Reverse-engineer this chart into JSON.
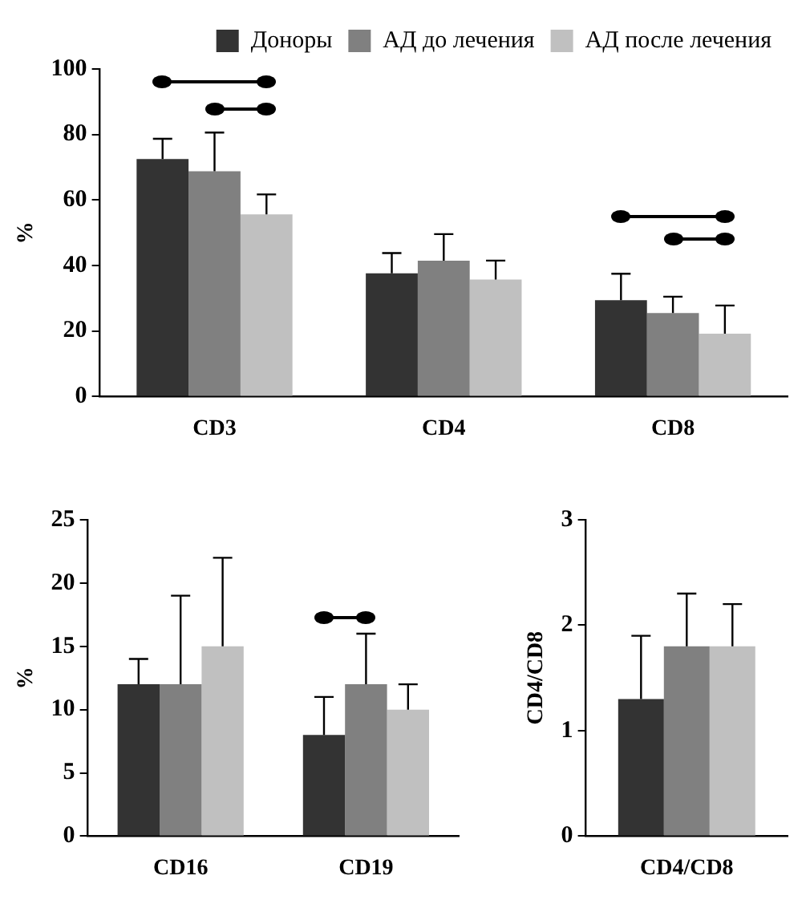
{
  "chart_data": [
    {
      "type": "bar",
      "categories": [
        "CD3",
        "CD4",
        "CD8"
      ],
      "ylabel": "%",
      "ylim": [
        0,
        100
      ],
      "yticks": [
        0,
        20,
        40,
        60,
        80,
        100
      ],
      "grid": false,
      "legend": "top right",
      "series": [
        {
          "name": "Доноры",
          "color": "#333333",
          "values": [
            72.5,
            37.6,
            29.4
          ],
          "errors": [
            [
              72.5,
              78.7
            ],
            [
              37.6,
              43.8
            ],
            [
              29.4,
              37.5
            ]
          ]
        },
        {
          "name": "АД до лечения",
          "color": "#808080",
          "values": [
            68.8,
            41.5,
            25.5
          ],
          "errors": [
            [
              68.8,
              80.6
            ],
            [
              41.5,
              49.6
            ],
            [
              25.5,
              30.5
            ]
          ]
        },
        {
          "name": "АД после лечения",
          "color": "#c0c0c0",
          "values": [
            55.6,
            35.7,
            19.2
          ],
          "errors": [
            [
              55.6,
              61.7
            ],
            [
              35.7,
              41.5
            ],
            [
              19.2,
              27.8
            ]
          ]
        }
      ]
    },
    {
      "type": "bar",
      "categories": [
        "CD16",
        "CD19"
      ],
      "ylabel": "%",
      "ylim": [
        0,
        25
      ],
      "yticks": [
        0,
        5,
        10,
        15,
        20,
        25
      ],
      "grid": false,
      "series": [
        {
          "color": "#333333",
          "values": [
            12,
            8
          ],
          "errors": [
            [
              12,
              14
            ],
            [
              8,
              11
            ]
          ]
        },
        {
          "color": "#808080",
          "values": [
            12,
            12
          ],
          "errors": [
            [
              12,
              19
            ],
            [
              12,
              16
            ]
          ]
        },
        {
          "color": "#c0c0c0",
          "values": [
            15,
            10
          ],
          "errors": [
            [
              15,
              22
            ],
            [
              10,
              12
            ]
          ]
        }
      ]
    },
    {
      "type": "bar",
      "categories": [
        "CD4/CD8"
      ],
      "ylabel": "CD4/CD8",
      "ylim": [
        0,
        3
      ],
      "yticks": [
        0,
        1,
        2,
        3
      ],
      "grid": false,
      "series": [
        {
          "color": "#333333",
          "values": [
            1.3
          ],
          "errors": [
            [
              1.3,
              1.9
            ]
          ]
        },
        {
          "color": "#808080",
          "values": [
            1.8
          ],
          "errors": [
            [
              1.8,
              2.3
            ]
          ]
        },
        {
          "color": "#c0c0c0",
          "values": [
            1.8
          ],
          "errors": [
            [
              1.8,
              2.2
            ]
          ]
        }
      ]
    }
  ]
}
